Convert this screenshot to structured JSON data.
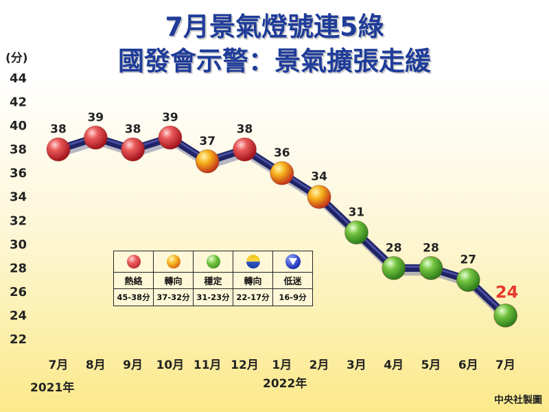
{
  "title_line1": "7月景氣燈號連5綠",
  "title_line2": "國發會示警：景氣擴張走緩",
  "y_unit": "(分)",
  "source": "中央社製圖",
  "years": [
    "2021年",
    "2022年"
  ],
  "chart_data": {
    "type": "line",
    "categories": [
      "7月",
      "8月",
      "9月",
      "10月",
      "11月",
      "12月",
      "1月",
      "2月",
      "3月",
      "4月",
      "5月",
      "6月",
      "7月"
    ],
    "values": [
      38,
      39,
      38,
      39,
      37,
      38,
      36,
      34,
      31,
      28,
      28,
      27,
      24
    ],
    "light_colors": [
      "red",
      "red",
      "red",
      "red",
      "yellow-red",
      "red",
      "yellow-red",
      "yellow-red",
      "green",
      "green",
      "green",
      "green",
      "green"
    ],
    "ylim": [
      22,
      44
    ],
    "yticks": [
      22,
      24,
      26,
      28,
      30,
      32,
      34,
      36,
      38,
      40,
      42,
      44
    ],
    "highlight_last": true
  },
  "legend": [
    {
      "name": "熱絡",
      "range": "45-38分",
      "color": "red"
    },
    {
      "name": "轉向",
      "range": "37-32分",
      "color": "yellow-red"
    },
    {
      "name": "穩定",
      "range": "31-23分",
      "color": "green"
    },
    {
      "name": "轉向",
      "range": "22-17分",
      "color": "yellow-blue"
    },
    {
      "name": "低迷",
      "range": "16-9分",
      "color": "blue"
    }
  ]
}
